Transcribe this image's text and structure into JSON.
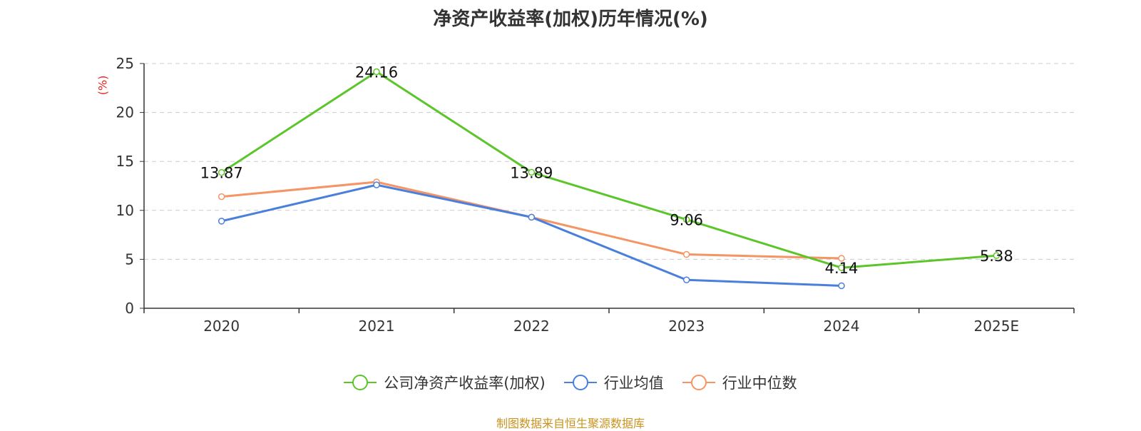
{
  "chart_data": {
    "type": "line",
    "title": "净资产收益率(加权)历年情况(%)",
    "ylabel": "(%)",
    "xlabel": "",
    "categories": [
      "2020",
      "2021",
      "2022",
      "2023",
      "2024",
      "2025E"
    ],
    "ylim": [
      0,
      25
    ],
    "yticks": [
      0,
      5,
      10,
      15,
      20,
      25
    ],
    "grid": true,
    "legend_position": "bottom",
    "series": [
      {
        "name": "公司净资产收益率(加权)",
        "color": "#5cc52a",
        "values": [
          13.87,
          24.16,
          13.89,
          9.06,
          4.14,
          5.38
        ],
        "labels": [
          "13.87",
          "24.16",
          "13.89",
          "9.06",
          "4.14",
          "5.38"
        ]
      },
      {
        "name": "行业均值",
        "color": "#4a7fdc",
        "values": [
          8.9,
          12.6,
          9.3,
          2.9,
          2.3,
          null
        ]
      },
      {
        "name": "行业中位数",
        "color": "#f59464",
        "values": [
          11.4,
          12.9,
          9.3,
          5.5,
          5.1,
          null
        ]
      }
    ],
    "source": "制图数据来自恒生聚源数据库"
  },
  "colors": {
    "unit_label": "#e8261e",
    "source_text": "#c8941f",
    "grid": "#cccccc",
    "axis": "#333333"
  }
}
